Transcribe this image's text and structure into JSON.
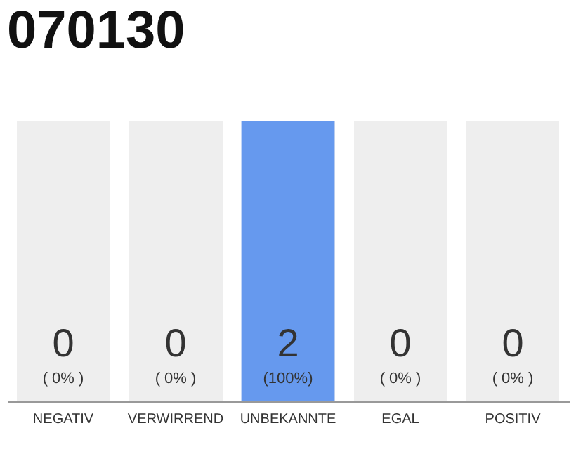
{
  "chart_data": {
    "type": "bar",
    "title": "070130",
    "categories": [
      "NEGATIV",
      "VERWIRREND",
      "UNBEKANNTE",
      "EGAL",
      "POSITIV"
    ],
    "values": [
      0,
      0,
      100,
      0,
      0
    ],
    "color": "#6699ee",
    "tick_labels": "x",
    "grid": false,
    "value_labels": [
      "( 0% )",
      "( 0% )",
      "(100%)",
      "( 0% )",
      "( 0% )"
    ],
    "annotations": [
      "0",
      "0",
      "2",
      "0",
      "0"
    ]
  }
}
